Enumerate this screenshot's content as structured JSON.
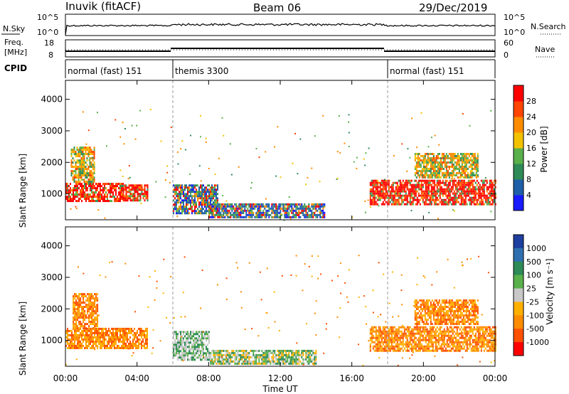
{
  "header": {
    "station": "Inuvik (fitACF)",
    "beam": "Beam 06",
    "date": "29/Dec/2019"
  },
  "top_panels": {
    "nsky_label": "N.Sky",
    "nsky_ticks": [
      "10^5",
      "10^0"
    ],
    "nsearch_label": "N.Search",
    "nsearch_ticks": [
      "10^5",
      "10^0"
    ],
    "freq_label_1": "Freq.",
    "freq_label_2": "[MHz]",
    "freq_ticks": [
      "18",
      "8"
    ],
    "nave_label": "Nave",
    "nave_ticks": [
      "60",
      "0"
    ],
    "cpid_label": "CPID"
  },
  "cpid_modes": [
    {
      "label": "normal (fast) 151",
      "start_hour": 0,
      "end_hour": 6
    },
    {
      "label": "themis 3300",
      "start_hour": 6,
      "end_hour": 18
    },
    {
      "label": "normal (fast) 151",
      "start_hour": 18,
      "end_hour": 24
    }
  ],
  "x_axis": {
    "label": "Time UT",
    "ticks": [
      "00:00",
      "04:00",
      "08:00",
      "12:00",
      "16:00",
      "20:00",
      "00:00"
    ],
    "tick_hours": [
      0,
      4,
      8,
      12,
      16,
      20,
      24
    ],
    "range_hours": [
      0,
      24
    ]
  },
  "y_axis": {
    "label": "Slant Range [km]",
    "ticks": [
      "1000",
      "2000",
      "3000",
      "4000"
    ],
    "tick_values": [
      1000,
      2000,
      3000,
      4000
    ],
    "range_km": [
      180,
      4600
    ]
  },
  "power_colorbar": {
    "label": "Power [dB]",
    "ticks": [
      "4",
      "8",
      "12",
      "16",
      "20",
      "24",
      "28"
    ],
    "colors": [
      "#1a1aff",
      "#1f5fa8",
      "#2e8b57",
      "#5ab04a",
      "#f2c200",
      "#ff8c00",
      "#ff4500",
      "#ff0000"
    ]
  },
  "velocity_colorbar": {
    "label": "Velocity [m s⁻¹]",
    "ticks": [
      "1000",
      "500",
      "100",
      "25",
      "-25",
      "-100",
      "-500",
      "-1000"
    ],
    "colors": [
      "#1f3fa0",
      "#2f6fb0",
      "#2e8b57",
      "#5ab04a",
      "#c8c8c8",
      "#ffb000",
      "#ff8c00",
      "#ff5000",
      "#ff0000"
    ]
  },
  "chart_data": {
    "type": "heatmap",
    "title": "Inuvik (fitACF) Beam 06 29/Dec/2019",
    "xlabel": "Time UT",
    "ylabel": "Slant Range [km]",
    "xlim_hours": [
      0,
      24
    ],
    "ylim_km": [
      180,
      4600
    ],
    "mode_boundaries_hours": [
      6,
      18
    ],
    "power_regions": [
      {
        "t0": 0.0,
        "t1": 3.2,
        "r0": 750,
        "r1": 1350,
        "level": "high"
      },
      {
        "t0": 3.2,
        "t1": 4.6,
        "r0": 800,
        "r1": 1300,
        "level": "high"
      },
      {
        "t0": 0.3,
        "t1": 1.6,
        "r0": 1400,
        "r1": 2500,
        "level": "medium"
      },
      {
        "t0": 6.0,
        "t1": 8.5,
        "r0": 400,
        "r1": 1300,
        "level": "mixed"
      },
      {
        "t0": 8.0,
        "t1": 14.5,
        "r0": 250,
        "r1": 700,
        "level": "mixed"
      },
      {
        "t0": 17.0,
        "t1": 24.0,
        "r0": 700,
        "r1": 1450,
        "level": "high"
      },
      {
        "t0": 19.5,
        "t1": 23.0,
        "r0": 1500,
        "r1": 2300,
        "level": "medium"
      }
    ],
    "velocity_regions": [
      {
        "t0": 0.0,
        "t1": 4.6,
        "r0": 750,
        "r1": 1400,
        "class": "-100"
      },
      {
        "t0": 0.4,
        "t1": 1.8,
        "r0": 1400,
        "r1": 2500,
        "class": "-100"
      },
      {
        "t0": 6.0,
        "t1": 8.0,
        "r0": 400,
        "r1": 1300,
        "class": "25"
      },
      {
        "t0": 8.0,
        "t1": 14.0,
        "r0": 250,
        "r1": 700,
        "class": "100"
      },
      {
        "t0": 17.0,
        "t1": 24.0,
        "r0": 700,
        "r1": 1450,
        "class": "-100"
      },
      {
        "t0": 19.5,
        "t1": 23.0,
        "r0": 1500,
        "r1": 2300,
        "class": "-100"
      }
    ]
  }
}
